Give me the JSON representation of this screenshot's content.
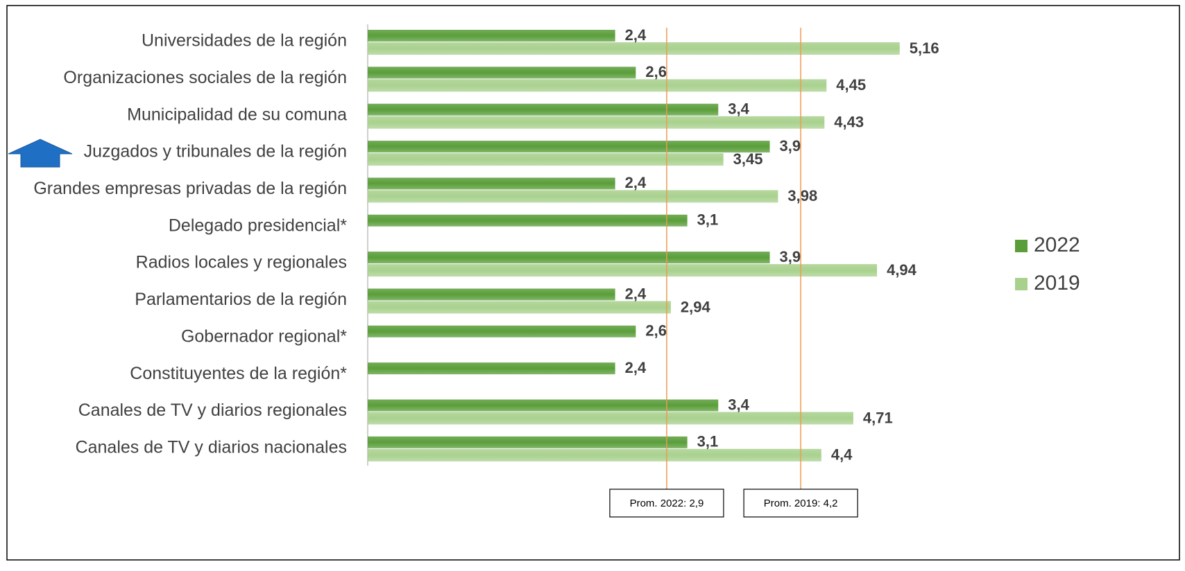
{
  "chart_data": {
    "type": "bar",
    "orientation": "horizontal",
    "categories": [
      "Universidades de la región",
      "Organizaciones sociales de la región",
      "Municipalidad de su comuna",
      "Juzgados y tribunales de la región",
      "Grandes empresas privadas de la región",
      "Delegado presidencial*",
      "Radios locales y regionales",
      "Parlamentarios de la región",
      "Gobernador regional*",
      "Constituyentes de la región*",
      "Canales de TV y diarios regionales",
      "Canales de TV y diarios nacionales"
    ],
    "series": [
      {
        "name": "2022",
        "color": "#5a9e3a",
        "values": [
          2.4,
          2.6,
          3.4,
          3.9,
          2.4,
          3.1,
          3.9,
          2.4,
          2.6,
          2.4,
          3.4,
          3.1
        ],
        "value_labels": [
          "2,4",
          "2,6",
          "3,4",
          "3,9",
          "2,4",
          "3,1",
          "3,9",
          "2,4",
          "2,6",
          "2,4",
          "3,4",
          "3,1"
        ]
      },
      {
        "name": "2019",
        "color": "#a9d18e",
        "values": [
          5.16,
          4.45,
          4.43,
          3.45,
          3.98,
          null,
          4.94,
          2.94,
          null,
          null,
          4.71,
          4.4
        ],
        "value_labels": [
          "5,16",
          "4,45",
          "4,43",
          "3,45",
          "3,98",
          null,
          "4,94",
          "2,94",
          null,
          null,
          "4,71",
          "4,4"
        ]
      }
    ],
    "annotations": [
      {
        "label": "Prom. 2022: 2,9",
        "value": 2.9,
        "color": "#ed9a4f"
      },
      {
        "label": "Prom. 2019: 4,2",
        "value": 4.2,
        "color": "#ed9a4f"
      }
    ],
    "legend": "right"
  }
}
